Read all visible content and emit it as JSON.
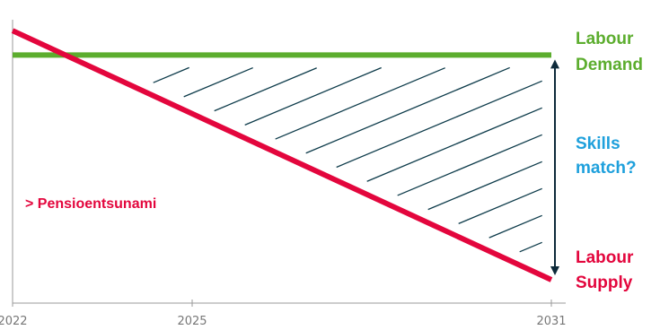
{
  "chart_data": {
    "type": "line",
    "x": [
      2022,
      2031
    ],
    "xticks": [
      "2022",
      "2025",
      "2031"
    ],
    "xlim": [
      2022,
      2031
    ],
    "ylim": [
      0,
      100
    ],
    "series": [
      {
        "name": "Labour Demand",
        "x": [
          2022,
          2031
        ],
        "values": [
          83,
          83
        ],
        "color": "#5cad2e"
      },
      {
        "name": "Labour Supply",
        "x": [
          2022,
          2031
        ],
        "values": [
          92,
          0
        ],
        "color": "#e3063d"
      }
    ],
    "annotations": {
      "demand_label_line1": "Labour",
      "demand_label_line2": "Demand",
      "supply_label_line1": "Labour",
      "supply_label_line2": "Supply",
      "gap_label_line1": "Skills",
      "gap_label_line2": "match?",
      "note": "> Pensioentsunami"
    },
    "colors": {
      "demand": "#5cad2e",
      "supply": "#e3063d",
      "gap_text": "#1ea0dc",
      "arrow": "#0d2a3a",
      "hatch": "#0d3b4a",
      "axis": "#9a9a9a"
    }
  }
}
